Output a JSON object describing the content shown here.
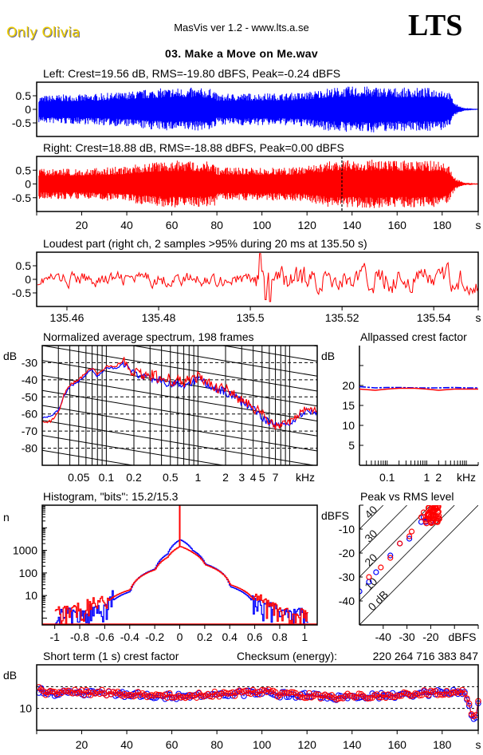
{
  "header": {
    "artist": "Only Olivia",
    "app_title": "MasVis ver 1.2 - www.lts.a.se",
    "logo": "LTS",
    "file_title": "03. Make a Move on Me.wav"
  },
  "colors": {
    "left": "#0000ff",
    "right": "#ff0000",
    "axis": "#000000",
    "background": "#ffffff"
  },
  "chart_data": [
    {
      "id": "left_waveform",
      "type": "area",
      "title": "Left: Crest=19.56 dB, RMS=-19.80 dBFS, Peak=-0.24 dBFS",
      "channel": "left",
      "ylim": [
        -1,
        1
      ],
      "yticks": [
        "0.5",
        "0",
        "-0.5"
      ],
      "ytick_values": [
        0.5,
        0,
        -0.5
      ],
      "xlim": [
        0,
        196
      ],
      "envelope": {
        "x": [
          1,
          10,
          20,
          30,
          40,
          50,
          60,
          70,
          79,
          80,
          90,
          100,
          110,
          120,
          130,
          140,
          150,
          160,
          170,
          180,
          183,
          186,
          190,
          196
        ],
        "peak": [
          0.5,
          0.55,
          0.55,
          0.6,
          0.65,
          0.75,
          0.8,
          0.8,
          0.75,
          0.55,
          0.6,
          0.6,
          0.6,
          0.65,
          0.8,
          0.85,
          0.85,
          0.8,
          0.8,
          0.8,
          0.65,
          0.2,
          0.05,
          0.02
        ]
      }
    },
    {
      "id": "right_waveform",
      "type": "area",
      "title": "Right: Crest=18.88 dB, RMS=-18.88 dBFS, Peak=0.00 dBFS",
      "channel": "right",
      "ylim": [
        -1,
        1
      ],
      "yticks": [
        "0.5",
        "0",
        "-0.5"
      ],
      "ytick_values": [
        0.5,
        0,
        -0.5
      ],
      "xlim": [
        0,
        196
      ],
      "xticks": [
        "20",
        "40",
        "60",
        "80",
        "100",
        "120",
        "140",
        "160",
        "180",
        "s"
      ],
      "xtick_values": [
        20,
        40,
        60,
        80,
        100,
        120,
        140,
        160,
        180,
        196
      ],
      "marker_at": 135.5,
      "envelope": {
        "x": [
          1,
          10,
          20,
          30,
          40,
          50,
          60,
          70,
          79,
          80,
          90,
          100,
          110,
          120,
          130,
          135,
          140,
          150,
          160,
          170,
          180,
          183,
          186,
          190,
          196
        ],
        "peak": [
          0.55,
          0.55,
          0.55,
          0.6,
          0.65,
          0.8,
          0.85,
          0.85,
          0.8,
          0.6,
          0.6,
          0.6,
          0.6,
          0.65,
          0.85,
          0.9,
          0.85,
          0.9,
          0.85,
          0.85,
          0.85,
          0.65,
          0.2,
          0.05,
          0.02
        ]
      }
    },
    {
      "id": "loudest_part",
      "type": "line",
      "title": "Loudest part (right ch, 2 samples >95% during 20 ms at 135.50 s)",
      "channel": "right",
      "ylim": [
        -1,
        1
      ],
      "yticks": [
        "0.5",
        "0",
        "-0.5"
      ],
      "ytick_values": [
        0.5,
        0,
        -0.5
      ],
      "xlim": [
        135.4534,
        135.5497
      ],
      "xticks": [
        "135.46",
        "135.48",
        "135.5",
        "135.52",
        "135.54",
        "s"
      ],
      "xtick_values": [
        135.46,
        135.48,
        135.5,
        135.52,
        135.54,
        135.5497
      ],
      "peak_at": 135.5022,
      "amplitude_before": 0.25,
      "amplitude_after": 0.45
    },
    {
      "id": "spectrum",
      "type": "line",
      "title": "Normalized average spectrum, 198 frames",
      "ylabel": "dB",
      "xlabel": "kHz",
      "xscale": "log",
      "xlim": [
        0.02,
        20
      ],
      "ylim": [
        -90,
        -20
      ],
      "yticks": [
        "-30",
        "-40",
        "-50",
        "-60",
        "-70",
        "-80"
      ],
      "ytick_values": [
        -30,
        -40,
        -50,
        -60,
        -70,
        -80
      ],
      "xticks": [
        "0.05",
        "0.1",
        "0.2",
        "0.5",
        "1",
        "2",
        "3",
        "4",
        "5",
        "7",
        "kHz"
      ],
      "xtick_values": [
        0.05,
        0.1,
        0.2,
        0.5,
        1,
        2,
        3,
        4,
        5,
        7,
        20
      ],
      "grid": true,
      "series": [
        {
          "name": "left",
          "x": [
            0.02,
            0.025,
            0.03,
            0.035,
            0.04,
            0.05,
            0.06,
            0.07,
            0.08,
            0.1,
            0.13,
            0.15,
            0.2,
            0.3,
            0.5,
            0.7,
            1,
            1.5,
            2,
            3,
            4,
            5,
            7,
            10,
            15,
            20
          ],
          "y": [
            -62,
            -61,
            -58,
            -49,
            -44,
            -41,
            -37,
            -34,
            -38,
            -33,
            -33,
            -31,
            -37,
            -39,
            -42,
            -43,
            -40,
            -45,
            -47,
            -53,
            -57,
            -62,
            -67,
            -66,
            -58,
            -59
          ]
        },
        {
          "name": "right",
          "x": [
            0.02,
            0.025,
            0.03,
            0.035,
            0.04,
            0.05,
            0.06,
            0.07,
            0.08,
            0.1,
            0.13,
            0.15,
            0.2,
            0.3,
            0.5,
            0.7,
            1,
            1.5,
            2,
            3,
            4,
            5,
            7,
            10,
            15,
            20
          ],
          "y": [
            -65,
            -64,
            -59,
            -48,
            -43,
            -40,
            -36,
            -33,
            -37,
            -32,
            -32,
            -29,
            -36,
            -37,
            -40,
            -41,
            -38,
            -44,
            -46,
            -52,
            -56,
            -61,
            -67,
            -65,
            -57,
            -58
          ]
        }
      ]
    },
    {
      "id": "allpassed_crest",
      "type": "line",
      "title": "Allpassed crest factor",
      "ylabel": "dB",
      "xlabel": "kHz",
      "xscale": "log",
      "xlim": [
        0.02,
        20
      ],
      "ylim": [
        0,
        30
      ],
      "yticks": [
        "20",
        "15",
        "10",
        "5"
      ],
      "ytick_values": [
        20,
        15,
        10,
        5
      ],
      "xticks": [
        "0.1",
        "1",
        "2",
        "kHz"
      ],
      "xtick_values": [
        0.1,
        1,
        2,
        20
      ],
      "series": [
        {
          "name": "left",
          "x": [
            0.02,
            0.05,
            0.1,
            0.2,
            0.5,
            1,
            2,
            5,
            10,
            20
          ],
          "y": [
            19.7,
            19.4,
            19.5,
            19.5,
            19.4,
            19.4,
            19.4,
            19.5,
            19.4,
            19.4
          ]
        },
        {
          "name": "right",
          "x": [
            0.02,
            0.05,
            0.1,
            0.2,
            0.5,
            1,
            2,
            5,
            10,
            20
          ],
          "y": [
            19.1,
            18.8,
            19.1,
            19.3,
            19.3,
            19.1,
            18.8,
            19.1,
            19.1,
            19.1
          ]
        }
      ]
    },
    {
      "id": "histogram",
      "type": "line",
      "title": "Histogram, \"bits\": 15.2/15.3",
      "ylabel": "n",
      "yscale": "log",
      "ylim": [
        0.5,
        100000
      ],
      "xlim": [
        -1.1,
        1.1
      ],
      "yticks": [
        "1000",
        "100",
        "10"
      ],
      "ytick_values": [
        1000,
        100,
        10
      ],
      "xticks": [
        "-1",
        "-0.8",
        "-0.6",
        "-0.4",
        "-0.2",
        "0",
        "0.2",
        "0.4",
        "0.6",
        "0.8",
        "1"
      ],
      "xtick_values": [
        -1,
        -0.8,
        -0.6,
        -0.4,
        -0.2,
        0,
        0.2,
        0.4,
        0.6,
        0.8,
        1
      ],
      "series": [
        {
          "name": "left",
          "x": [
            -1,
            -0.8,
            -0.6,
            -0.4,
            -0.2,
            -0.1,
            0,
            0.1,
            0.2,
            0.4,
            0.6,
            0.8,
            1
          ],
          "y": [
            1,
            1,
            2,
            15,
            150,
            700,
            3000,
            1000,
            250,
            25,
            3,
            1,
            1
          ]
        },
        {
          "name": "right",
          "x": [
            -1,
            -0.8,
            -0.6,
            -0.4,
            -0.2,
            -0.1,
            0,
            0.1,
            0.2,
            0.4,
            0.6,
            0.8,
            1
          ],
          "y": [
            1,
            2,
            4,
            18,
            140,
            500,
            1500,
            800,
            230,
            30,
            5,
            1,
            1
          ]
        }
      ],
      "spike_at_zero": 80000
    },
    {
      "id": "peak_vs_rms",
      "type": "scatter",
      "title": "Peak vs RMS level",
      "xlabel": "dBFS",
      "ylabel": "dBFS",
      "xlim": [
        -50,
        0
      ],
      "ylim": [
        -50,
        0
      ],
      "xticks": [
        "-40",
        "-30",
        "-20",
        "dBFS"
      ],
      "xtick_values": [
        -40,
        -30,
        -20,
        0
      ],
      "yticks": [
        "-10",
        "-20",
        "-30",
        "-40"
      ],
      "ytick_values": [
        -10,
        -20,
        -30,
        -40
      ],
      "crest_lines": [
        "40",
        "30",
        "20",
        "10",
        "0 dB"
      ],
      "crest_line_values": [
        40,
        30,
        20,
        10,
        0
      ],
      "series": [
        {
          "name": "left",
          "x": [
            -50,
            -46,
            -43,
            -37,
            -33,
            -29,
            -24,
            -23,
            -22,
            -21,
            -20
          ],
          "y": [
            -36,
            -32,
            -28,
            -21,
            -16,
            -14,
            -7,
            -5,
            -7,
            -6,
            -7
          ]
        },
        {
          "name": "right",
          "x": [
            -46,
            -41,
            -37,
            -33,
            -29,
            -28,
            -24,
            -23,
            -22,
            -21,
            -20,
            -19,
            -18,
            -17,
            -18,
            -19,
            -17
          ],
          "y": [
            -30,
            -26,
            -22,
            -16,
            -13,
            -11,
            -5,
            -3,
            -6,
            -4,
            -2,
            -4,
            -1,
            -3,
            -5,
            -7,
            -5
          ]
        }
      ]
    },
    {
      "id": "short_term_crest",
      "type": "scatter",
      "title": "Short term (1 s) crest factor",
      "checksum_label": "Checksum (energy):",
      "checksum_value": "220 264 716 383 847",
      "ylabel": "dB",
      "ylim": [
        5,
        20
      ],
      "yticks": [
        "10"
      ],
      "ytick_values": [
        10
      ],
      "xlim": [
        0,
        196
      ],
      "xticks": [
        "20",
        "40",
        "60",
        "80",
        "100",
        "120",
        "140",
        "160",
        "180",
        "s"
      ],
      "xtick_values": [
        20,
        40,
        60,
        80,
        100,
        120,
        140,
        160,
        180,
        196
      ],
      "series": [
        {
          "name": "left",
          "mean": 13.2,
          "x_end": 190,
          "tail_x": [
            191,
            192,
            193,
            194,
            195,
            196
          ],
          "tail_y": [
            12.0,
            10.6,
            8.4,
            7.6,
            7.9,
            11.2
          ]
        },
        {
          "name": "right",
          "mean": 13.3,
          "x_end": 190,
          "tail_x": [
            191,
            192,
            193,
            194,
            195,
            196
          ],
          "tail_y": [
            12.3,
            11.1,
            8.7,
            8.2,
            8.5,
            11.7
          ]
        }
      ]
    }
  ]
}
